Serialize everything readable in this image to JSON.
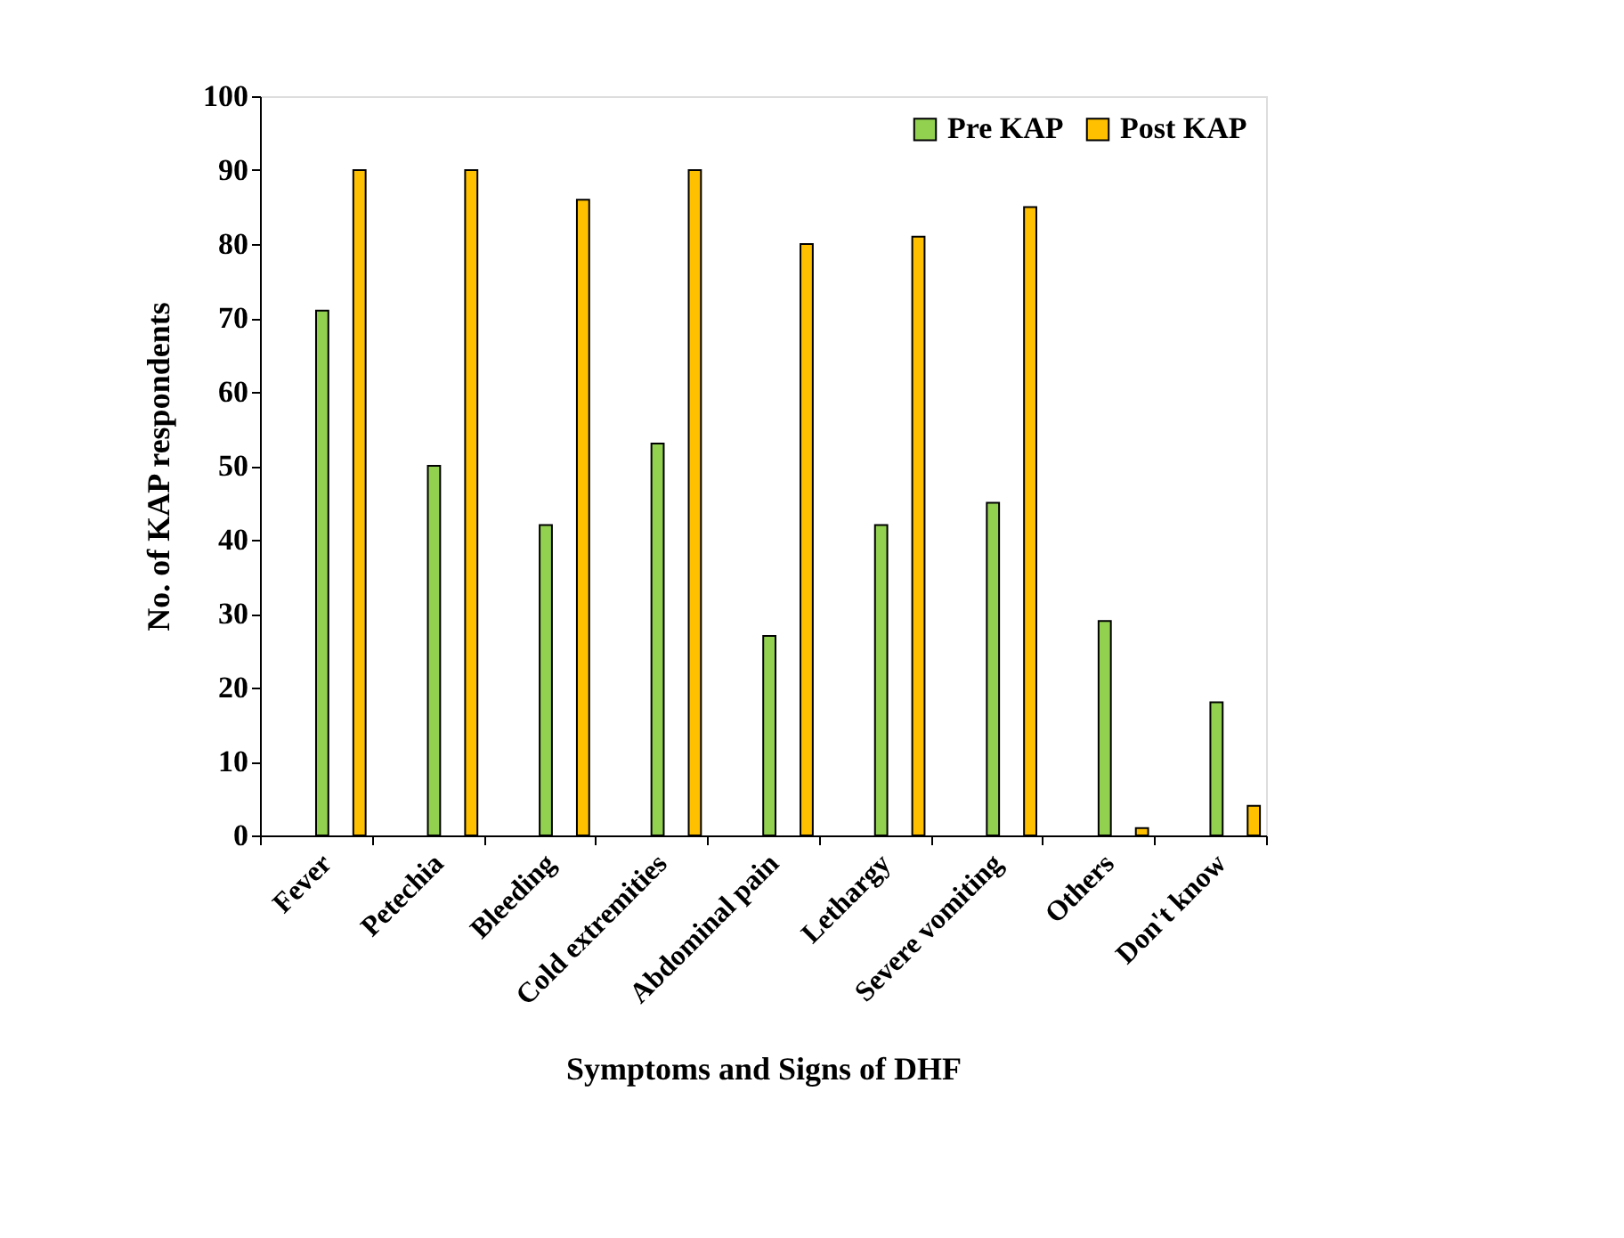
{
  "chart_data": {
    "type": "bar",
    "xlabel": "Symptoms and Signs of DHF",
    "ylabel": "No. of KAP respondents",
    "categories": [
      "Fever",
      "Petechia",
      "Bleeding",
      "Cold extremities",
      "Abdominal pain",
      "Lethargy",
      "Severe vomiting",
      "Others",
      "Don't know"
    ],
    "series": [
      {
        "name": "Pre KAP",
        "color": "#92d050",
        "values": [
          71,
          50,
          42,
          53,
          27,
          42,
          45,
          29,
          18
        ]
      },
      {
        "name": "Post KAP",
        "color": "#ffc000",
        "values": [
          90,
          90,
          86,
          90,
          80,
          81,
          85,
          1,
          4
        ]
      }
    ],
    "ylim": [
      0,
      100
    ],
    "yticks": [
      0,
      10,
      20,
      30,
      40,
      50,
      60,
      70,
      80,
      90,
      100
    ],
    "grid": false,
    "legend": "top right"
  }
}
